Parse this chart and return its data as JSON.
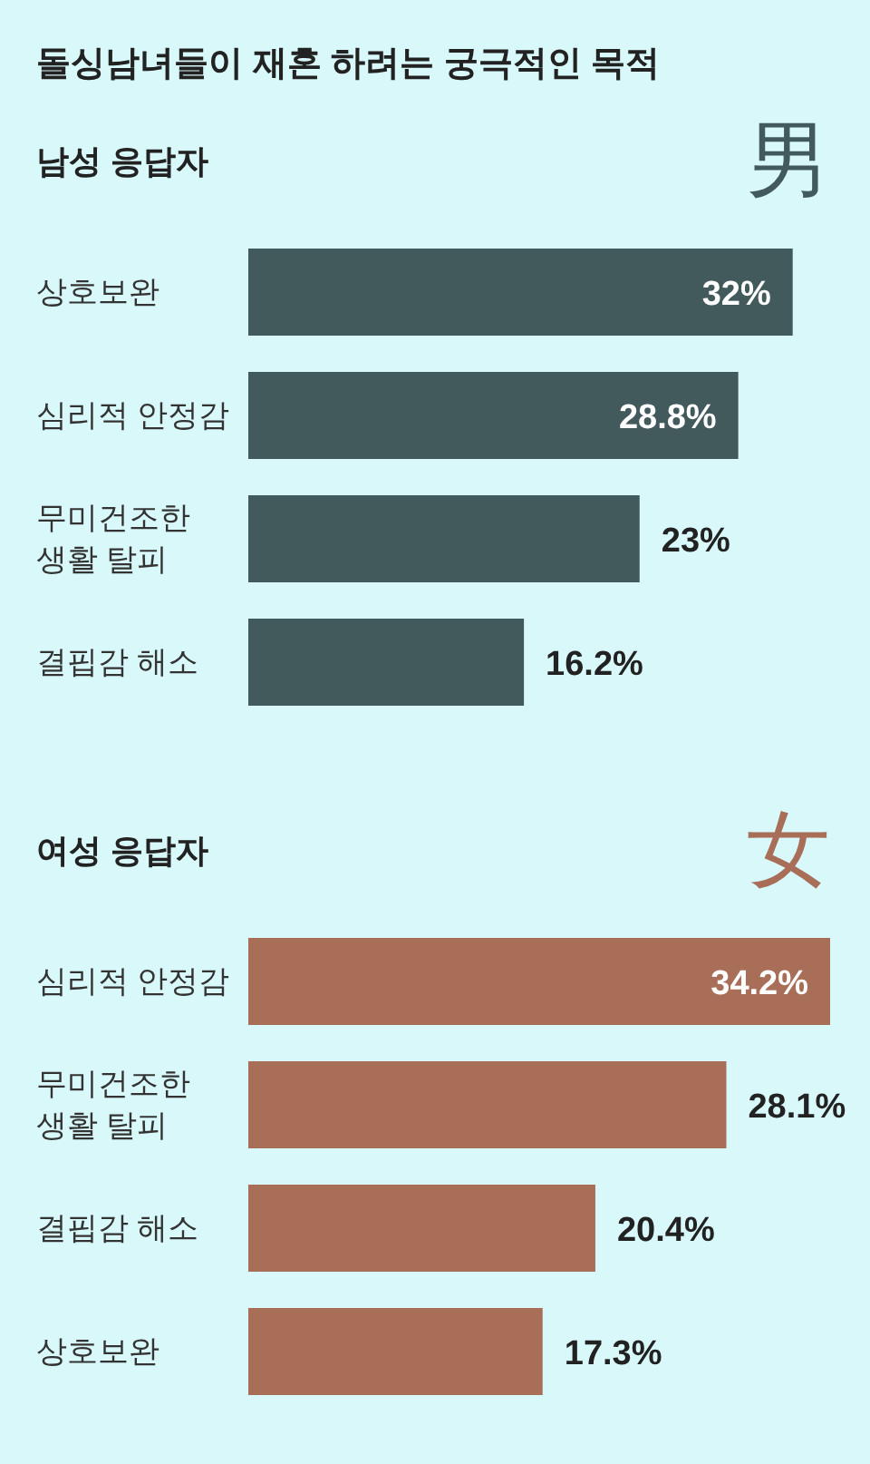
{
  "chart_data": [
    {
      "type": "bar",
      "orientation": "horizontal",
      "title": "돌싱남녀들이 재혼 하려는 궁극적인 목적",
      "subtitle": "남성 응답자",
      "annotations": [
        "男"
      ],
      "categories": [
        "상호보완",
        "심리적 안정감",
        "무미건조한 생활 탈피",
        "결핍감 해소"
      ],
      "values": [
        32,
        28.8,
        23,
        16.2
      ],
      "value_labels": [
        "32%",
        "28.8%",
        "23%",
        "16.2%"
      ],
      "color": "#435a5c"
    },
    {
      "type": "bar",
      "orientation": "horizontal",
      "title": "여성 응답자",
      "annotations": [
        "女"
      ],
      "categories": [
        "심리적 안정감",
        "무미건조한 생활 탈피",
        "결핍감 해소",
        "상호보완"
      ],
      "values": [
        34.2,
        28.1,
        20.4,
        17.3
      ],
      "value_labels": [
        "34.2%",
        "28.1%",
        "20.4%",
        "17.3%"
      ],
      "color": "#a86e58"
    }
  ]
}
